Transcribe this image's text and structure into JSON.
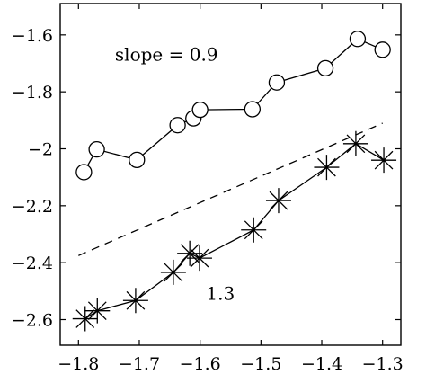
{
  "chart_data": {
    "type": "line",
    "title": "",
    "xlabel": "",
    "ylabel": "",
    "xlim": [
      -1.83,
      -1.27
    ],
    "ylim": [
      -2.69,
      -1.49
    ],
    "grid": false,
    "x_ticks": [
      -1.8,
      -1.7,
      -1.6,
      -1.5,
      -1.4,
      -1.3
    ],
    "x_tick_labels": [
      "−1.8",
      "−1.7",
      "−1.6",
      "−1.5",
      "−1.4",
      "−1.3"
    ],
    "y_ticks": [
      -1.6,
      -1.8,
      -2.0,
      -2.2,
      -2.4,
      -2.6
    ],
    "y_tick_labels": [
      "−1.6",
      "−1.8",
      "−2",
      "−2.2",
      "−2.4",
      "−2.6"
    ],
    "series": [
      {
        "marker": "circle",
        "x": [
          -1.791,
          -1.77,
          -1.704,
          -1.637,
          -1.611,
          -1.6,
          -1.514,
          -1.474,
          -1.394,
          -1.341,
          -1.3
        ],
        "y": [
          -2.082,
          -2.002,
          -2.039,
          -1.917,
          -1.893,
          -1.863,
          -1.861,
          -1.767,
          -1.717,
          -1.614,
          -1.652
        ]
      },
      {
        "marker": "asterisk",
        "x": [
          -1.789,
          -1.769,
          -1.706,
          -1.644,
          -1.617,
          -1.601,
          -1.512,
          -1.471,
          -1.392,
          -1.344,
          -1.298
        ],
        "y": [
          -2.597,
          -2.569,
          -2.533,
          -2.434,
          -2.367,
          -2.384,
          -2.285,
          -2.182,
          -2.065,
          -1.982,
          -2.04
        ]
      },
      {
        "marker": "none",
        "linestyle": "dashed",
        "x": [
          -1.8,
          -1.3
        ],
        "y": [
          -2.375,
          -1.91
        ]
      }
    ],
    "annotations": [
      {
        "text": "slope = 0.9",
        "x": -1.74,
        "y": -1.69
      },
      {
        "text": "1.3",
        "x": -1.59,
        "y": -2.53
      }
    ]
  }
}
